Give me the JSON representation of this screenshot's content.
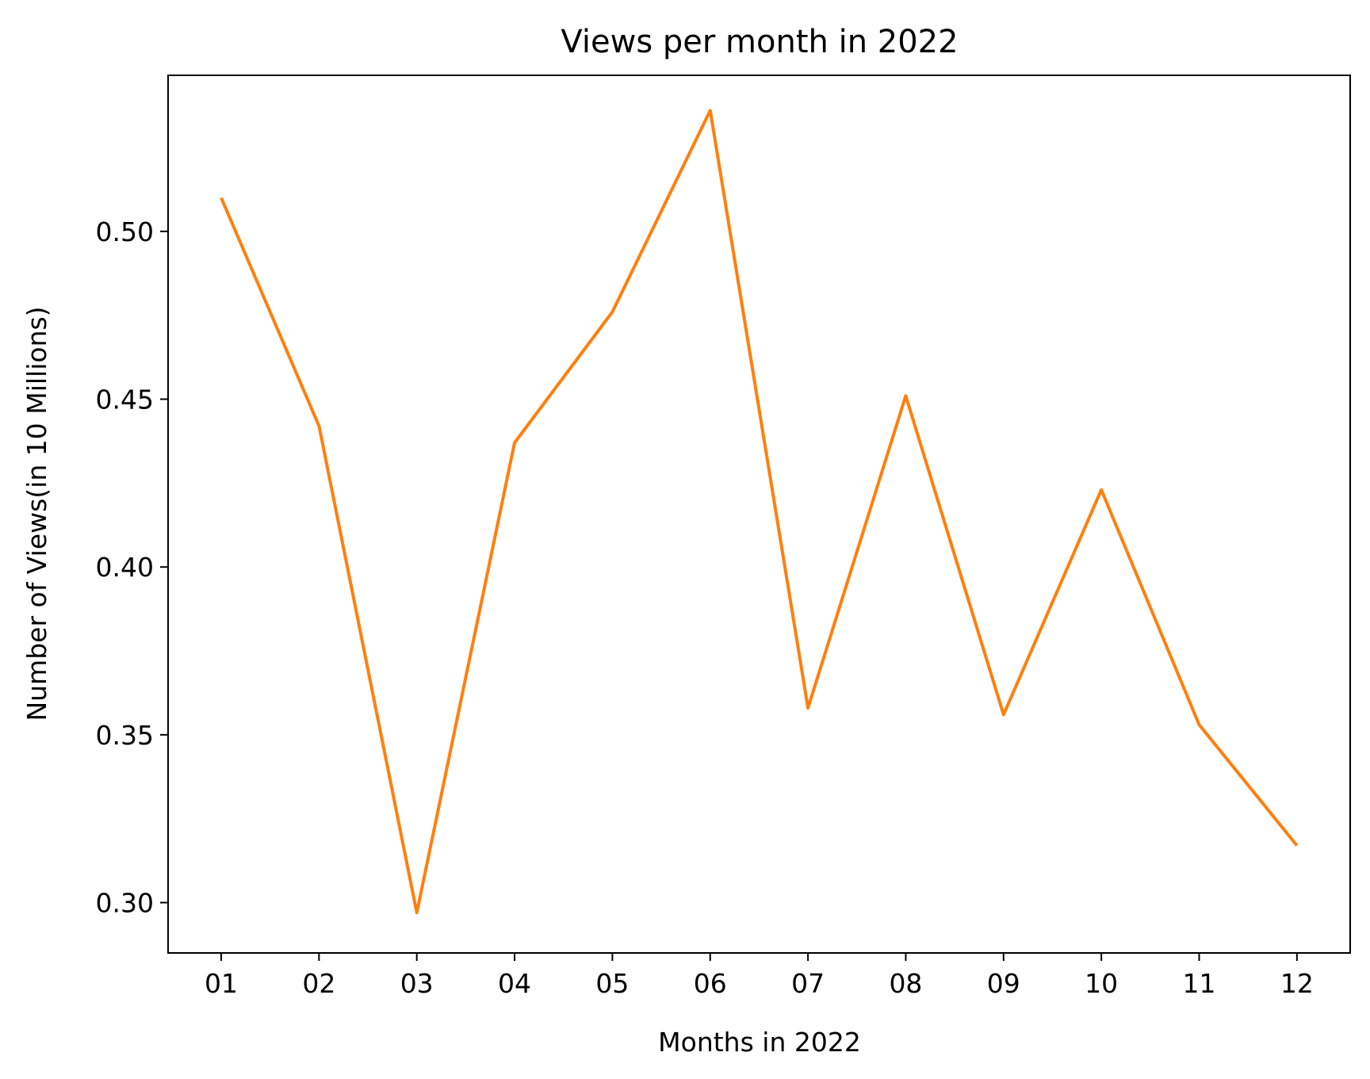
{
  "chart_data": {
    "type": "line",
    "title": "Views per month in 2022",
    "xlabel": "Months in 2022",
    "ylabel": "Number of Views(in 10 Millions)",
    "categories": [
      "01",
      "02",
      "03",
      "04",
      "05",
      "06",
      "07",
      "08",
      "09",
      "10",
      "11",
      "12"
    ],
    "series": [
      {
        "values": [
          0.51,
          0.442,
          0.297,
          0.437,
          0.476,
          0.536,
          0.358,
          0.451,
          0.356,
          0.423,
          0.353,
          0.317
        ],
        "color": "#ff7f0e"
      }
    ],
    "yticks": [
      "0.30",
      "0.35",
      "0.40",
      "0.45",
      "0.50"
    ],
    "ylim": [
      0.285,
      0.5465
    ],
    "grid": false,
    "legend": "none"
  }
}
